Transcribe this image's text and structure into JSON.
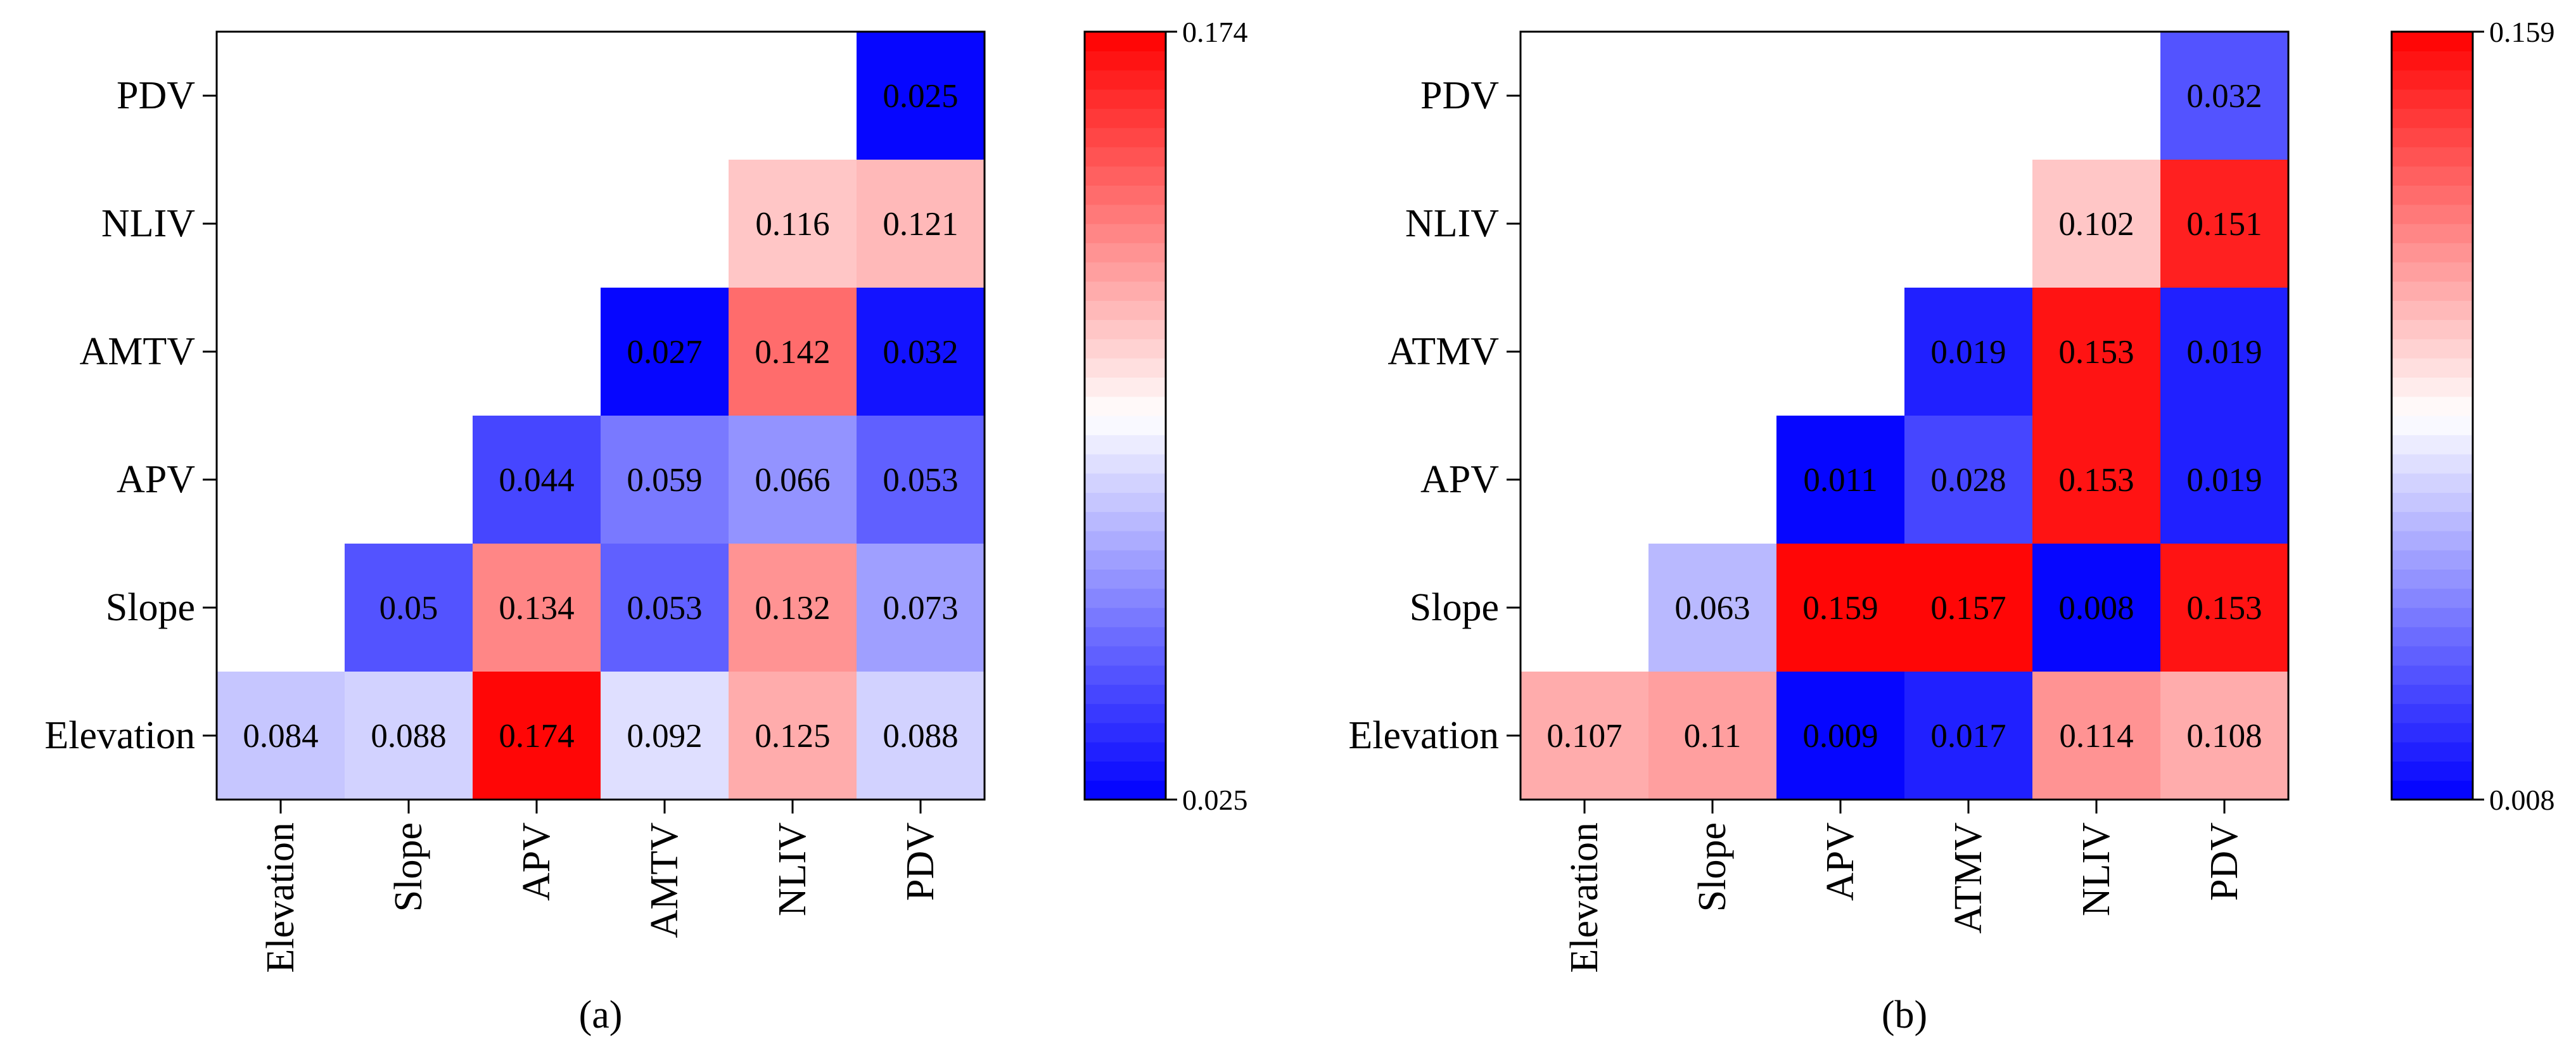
{
  "figure": {
    "description_panels": [
      "(a)",
      "(b)"
    ]
  },
  "colors": {
    "low": "#0000ff",
    "mid": "#ffffff",
    "high": "#ff0000"
  },
  "chart_data": [
    {
      "type": "heatmap",
      "panel_label": "(a)",
      "x_labels": [
        "Elevation",
        "Slope",
        "APV",
        "AMTV",
        "NLIV",
        "PDV"
      ],
      "y_labels": [
        "Elevation",
        "Slope",
        "APV",
        "AMTV",
        "NLIV",
        "PDV"
      ],
      "colorbar": {
        "min": 0.025,
        "max": 0.174,
        "min_label": "0.025",
        "max_label": "0.174",
        "steps": 40
      },
      "cells": [
        {
          "x": "Elevation",
          "y": "Elevation",
          "value": 0.084,
          "label": "0.084"
        },
        {
          "x": "Slope",
          "y": "Elevation",
          "value": 0.088,
          "label": "0.088"
        },
        {
          "x": "APV",
          "y": "Elevation",
          "value": 0.174,
          "label": "0.174"
        },
        {
          "x": "AMTV",
          "y": "Elevation",
          "value": 0.092,
          "label": "0.092"
        },
        {
          "x": "NLIV",
          "y": "Elevation",
          "value": 0.125,
          "label": "0.125"
        },
        {
          "x": "PDV",
          "y": "Elevation",
          "value": 0.088,
          "label": "0.088"
        },
        {
          "x": "Slope",
          "y": "Slope",
          "value": 0.05,
          "label": "0.05"
        },
        {
          "x": "APV",
          "y": "Slope",
          "value": 0.134,
          "label": "0.134"
        },
        {
          "x": "AMTV",
          "y": "Slope",
          "value": 0.053,
          "label": "0.053"
        },
        {
          "x": "NLIV",
          "y": "Slope",
          "value": 0.132,
          "label": "0.132"
        },
        {
          "x": "PDV",
          "y": "Slope",
          "value": 0.073,
          "label": "0.073"
        },
        {
          "x": "APV",
          "y": "APV",
          "value": 0.044,
          "label": "0.044"
        },
        {
          "x": "AMTV",
          "y": "APV",
          "value": 0.059,
          "label": "0.059"
        },
        {
          "x": "NLIV",
          "y": "APV",
          "value": 0.066,
          "label": "0.066"
        },
        {
          "x": "PDV",
          "y": "APV",
          "value": 0.053,
          "label": "0.053"
        },
        {
          "x": "AMTV",
          "y": "AMTV",
          "value": 0.027,
          "label": "0.027"
        },
        {
          "x": "NLIV",
          "y": "AMTV",
          "value": 0.142,
          "label": "0.142"
        },
        {
          "x": "PDV",
          "y": "AMTV",
          "value": 0.032,
          "label": "0.032"
        },
        {
          "x": "NLIV",
          "y": "NLIV",
          "value": 0.116,
          "label": "0.116"
        },
        {
          "x": "PDV",
          "y": "NLIV",
          "value": 0.121,
          "label": "0.121"
        },
        {
          "x": "PDV",
          "y": "PDV",
          "value": 0.025,
          "label": "0.025"
        }
      ]
    },
    {
      "type": "heatmap",
      "panel_label": "(b)",
      "x_labels": [
        "Elevation",
        "Slope",
        "APV",
        "ATMV",
        "NLIV",
        "PDV"
      ],
      "y_labels": [
        "Elevation",
        "Slope",
        "APV",
        "ATMV",
        "NLIV",
        "PDV"
      ],
      "colorbar": {
        "min": 0.008,
        "max": 0.159,
        "min_label": "0.008",
        "max_label": "0.159",
        "steps": 40
      },
      "cells": [
        {
          "x": "Elevation",
          "y": "Elevation",
          "value": 0.107,
          "label": "0.107"
        },
        {
          "x": "Slope",
          "y": "Elevation",
          "value": 0.11,
          "label": "0.11"
        },
        {
          "x": "APV",
          "y": "Elevation",
          "value": 0.009,
          "label": "0.009"
        },
        {
          "x": "ATMV",
          "y": "Elevation",
          "value": 0.017,
          "label": "0.017"
        },
        {
          "x": "NLIV",
          "y": "Elevation",
          "value": 0.114,
          "label": "0.114"
        },
        {
          "x": "PDV",
          "y": "Elevation",
          "value": 0.108,
          "label": "0.108"
        },
        {
          "x": "Slope",
          "y": "Slope",
          "value": 0.063,
          "label": "0.063"
        },
        {
          "x": "APV",
          "y": "Slope",
          "value": 0.159,
          "label": "0.159"
        },
        {
          "x": "ATMV",
          "y": "Slope",
          "value": 0.157,
          "label": "0.157"
        },
        {
          "x": "NLIV",
          "y": "Slope",
          "value": 0.008,
          "label": "0.008"
        },
        {
          "x": "PDV",
          "y": "Slope",
          "value": 0.153,
          "label": "0.153"
        },
        {
          "x": "APV",
          "y": "APV",
          "value": 0.011,
          "label": "0.011"
        },
        {
          "x": "ATMV",
          "y": "APV",
          "value": 0.028,
          "label": "0.028"
        },
        {
          "x": "NLIV",
          "y": "APV",
          "value": 0.153,
          "label": "0.153"
        },
        {
          "x": "PDV",
          "y": "APV",
          "value": 0.019,
          "label": "0.019"
        },
        {
          "x": "ATMV",
          "y": "ATMV",
          "value": 0.019,
          "label": "0.019"
        },
        {
          "x": "NLIV",
          "y": "ATMV",
          "value": 0.153,
          "label": "0.153"
        },
        {
          "x": "PDV",
          "y": "ATMV",
          "value": 0.019,
          "label": "0.019"
        },
        {
          "x": "NLIV",
          "y": "NLIV",
          "value": 0.102,
          "label": "0.102"
        },
        {
          "x": "PDV",
          "y": "NLIV",
          "value": 0.151,
          "label": "0.151"
        },
        {
          "x": "PDV",
          "y": "PDV",
          "value": 0.032,
          "label": "0.032"
        }
      ]
    }
  ]
}
